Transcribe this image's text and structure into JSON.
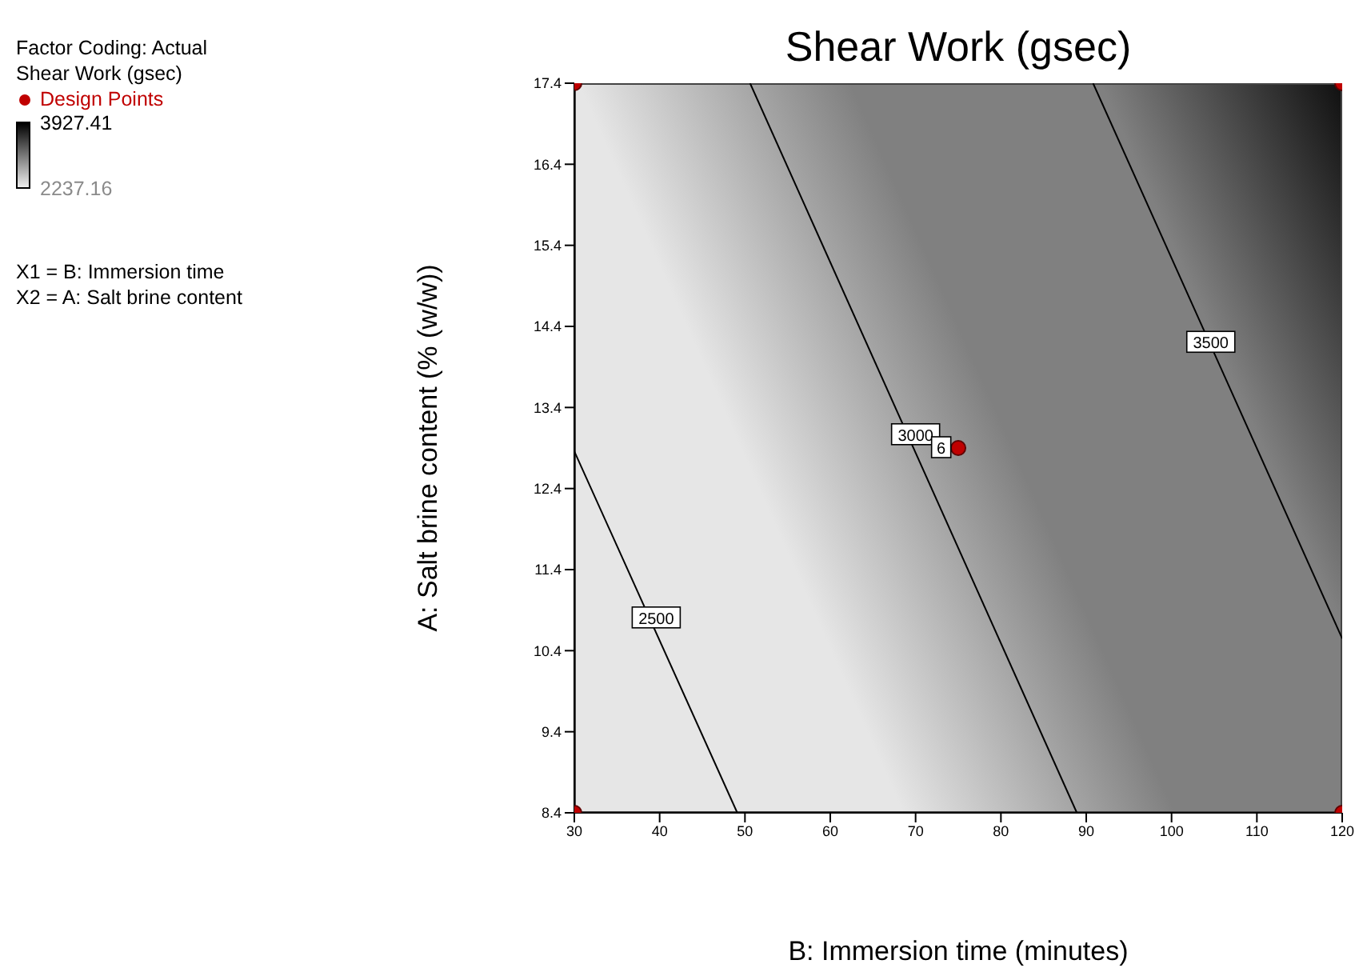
{
  "chart_data": {
    "type": "line",
    "title": "Shear Work (gsec)",
    "xlabel": "B: Immersion time (minutes)",
    "ylabel": "A: Salt brine content (% (w/w))",
    "clabel": "Shear Work (gsec)",
    "clim": [
      2237.16,
      3927.41
    ],
    "cticks": [
      2237.16,
      3927.41
    ],
    "legend": "top left",
    "grid": false,
    "marker": "none",
    "xlim": [
      30,
      120
    ],
    "xticks": [
      30,
      40,
      50,
      60,
      70,
      80,
      90,
      100,
      110,
      120
    ],
    "ylim": [
      8.4,
      17.4
    ],
    "yticks": [
      8.4,
      9.4,
      10.4,
      11.4,
      12.4,
      13.4,
      14.4,
      15.4,
      16.4,
      17.4
    ],
    "series": [
      {
        "color": "#000000",
        "x": [
          30,
          49.1
        ],
        "values": [
          12.86,
          8.4
        ]
      },
      {
        "color": "#000000",
        "x": [
          50.6,
          88.9
        ],
        "values": [
          17.4,
          8.4
        ]
      },
      {
        "color": "#000000",
        "x": [
          90.8,
          120
        ],
        "values": [
          17.4,
          10.55
        ]
      },
      {
        "type": "scatter",
        "name": "Design Points",
        "color": "#c00000",
        "marker": "circle",
        "x": [
          30,
          30,
          120,
          120,
          75
        ],
        "values": [
          8.4,
          17.4,
          8.4,
          17.4,
          12.9
        ]
      }
    ],
    "annotations": [
      "Factor Coding: Actual",
      "X1 = B: Immersion time",
      "X2 = A: Salt brine content",
      {
        "text": "2500",
        "x": 39.6,
        "y": 10.8
      },
      {
        "text": "3000",
        "x": 70,
        "y": 13.06
      },
      {
        "text": "3500",
        "x": 104.6,
        "y": 14.2
      },
      {
        "text": "6",
        "x": 73,
        "y": 12.9
      }
    ]
  }
}
